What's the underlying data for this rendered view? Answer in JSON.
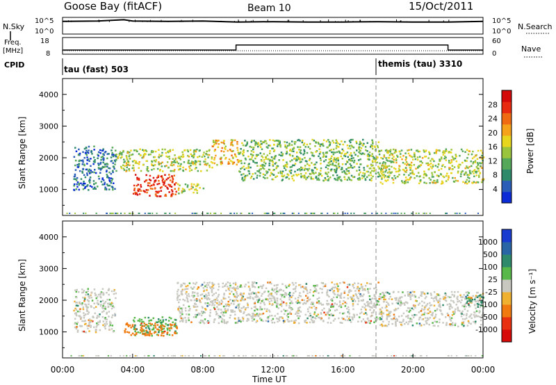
{
  "header": {
    "station": "Goose Bay (fitACF)",
    "beam": "Beam 10",
    "date": "15/Oct/2011"
  },
  "nsky_panel": {
    "left_label": "N.Sky",
    "left_ticks": [
      "10^5",
      "10^0"
    ],
    "right_label": "N.Search",
    "right_ticks": [
      "10^5",
      "10^0"
    ]
  },
  "freq_panel": {
    "left_label_1": "Freq.",
    "left_label_2": "[MHz]",
    "left_ticks": [
      "18",
      "8"
    ],
    "right_label": "Nave",
    "right_ticks": [
      "60",
      "0"
    ]
  },
  "cpid_panel": {
    "label": "CPID",
    "modes": [
      {
        "name": "tau (fast) 503"
      },
      {
        "name": "themis (tau) 3310"
      }
    ]
  },
  "power_panel": {
    "ylabel": "Slant Range [km]",
    "yticks": [
      "4000",
      "3000",
      "2000",
      "1000"
    ],
    "colorbar_label": "Power [dB]",
    "colorbar_ticks": [
      "28",
      "24",
      "20",
      "16",
      "12",
      "8",
      "4"
    ]
  },
  "velocity_panel": {
    "ylabel": "Slant Range [km]",
    "yticks": [
      "4000",
      "3000",
      "2000",
      "1000"
    ],
    "colorbar_label": "Velocity [m s⁻¹]",
    "colorbar_ticks": [
      "1000",
      "500",
      "100",
      "25",
      "-25",
      "-100",
      "-500",
      "-1000"
    ]
  },
  "xaxis": {
    "label": "Time UT",
    "ticks": [
      "00:00",
      "04:00",
      "08:00",
      "12:00",
      "16:00",
      "20:00",
      "00:00"
    ]
  },
  "colors": {
    "power_scale": [
      "#0a2bd6",
      "#2a5db8",
      "#2e8a6a",
      "#55a85a",
      "#9ac43c",
      "#e8d51e",
      "#f5a11a",
      "#f06a12",
      "#e82a10",
      "#d40a0a"
    ],
    "velocity_scale": [
      "#1a3bd0",
      "#2a66a6",
      "#2e8a6a",
      "#58b84a",
      "#c8c8c0",
      "#f0b030",
      "#f07a10",
      "#e83010",
      "#d60808"
    ]
  },
  "chart_data": [
    {
      "type": "line",
      "title": "",
      "series": [
        {
          "name": "N.Sky",
          "x_hours": [
            0,
            2,
            3.5,
            4,
            6,
            8,
            10,
            12,
            14,
            16,
            18,
            20,
            22,
            24
          ],
          "y_log10": [
            3.8,
            3.9,
            4.3,
            3.9,
            3.8,
            3.9,
            3.6,
            3.7,
            3.6,
            3.6,
            3.7,
            3.6,
            3.6,
            3.8
          ]
        }
      ],
      "ylim": [
        0,
        5
      ],
      "yscale": "log"
    },
    {
      "type": "line",
      "title": "",
      "series": [
        {
          "name": "Freq.",
          "x_hours": [
            0,
            9.9,
            9.9,
            22,
            22,
            24
          ],
          "y": [
            10.5,
            10.5,
            13.5,
            13.5,
            10.5,
            10.5
          ]
        }
      ],
      "ylim": [
        8,
        18
      ]
    },
    {
      "type": "heatmap",
      "title": "",
      "xlabel": "Time UT",
      "ylabel": "Slant Range [km]",
      "xlim": [
        0,
        24
      ],
      "ylim": [
        180,
        4500
      ],
      "zlabel": "Power [dB]",
      "zlim": [
        0,
        30
      ],
      "regions": [
        {
          "t": [
            0.6,
            3.0
          ],
          "r": [
            1000,
            2400
          ],
          "power": 6
        },
        {
          "t": [
            3.0,
            8.5
          ],
          "r": [
            1600,
            2300
          ],
          "power": 14
        },
        {
          "t": [
            4.0,
            6.5
          ],
          "r": [
            800,
            1500
          ],
          "power": 26
        },
        {
          "t": [
            6.5,
            8.0
          ],
          "r": [
            900,
            1200
          ],
          "power": 14
        },
        {
          "t": [
            8.5,
            10.0
          ],
          "r": [
            1800,
            2600
          ],
          "power": 18
        },
        {
          "t": [
            10.0,
            18.0
          ],
          "r": [
            1300,
            2600
          ],
          "power": 12
        },
        {
          "t": [
            18.0,
            24.0
          ],
          "r": [
            1200,
            2300
          ],
          "power": 14
        }
      ]
    },
    {
      "type": "heatmap",
      "title": "",
      "xlabel": "Time UT",
      "ylabel": "Slant Range [km]",
      "xlim": [
        0,
        24
      ],
      "ylim": [
        180,
        4500
      ],
      "zlabel": "Velocity [m s⁻¹]",
      "zlim": [
        -1000,
        1000
      ],
      "regions": [
        {
          "t": [
            0.6,
            3.0
          ],
          "r": [
            1000,
            2400
          ],
          "velocity": 0
        },
        {
          "t": [
            4.0,
            6.5
          ],
          "r": [
            900,
            1500
          ],
          "velocity": 80
        },
        {
          "t": [
            3.5,
            6.5
          ],
          "r": [
            900,
            1300
          ],
          "velocity": -200
        },
        {
          "t": [
            6.5,
            18.0
          ],
          "r": [
            1300,
            2600
          ],
          "velocity": 0
        },
        {
          "t": [
            18.0,
            24.0
          ],
          "r": [
            1200,
            2300
          ],
          "velocity": 0
        },
        {
          "t": [
            23.0,
            24.0
          ],
          "r": [
            1800,
            2200
          ],
          "velocity": 120
        }
      ]
    }
  ]
}
